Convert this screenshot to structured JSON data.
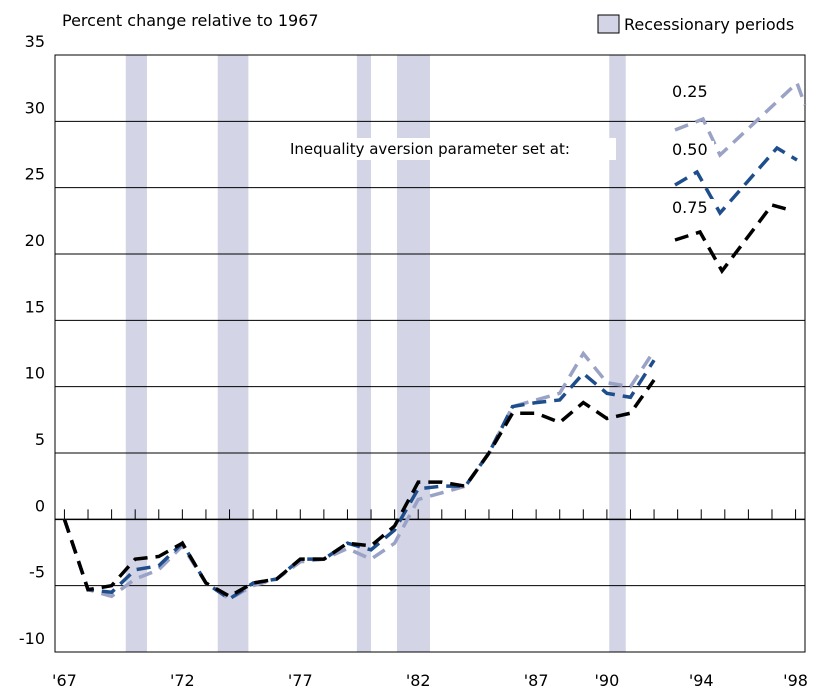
{
  "chart_data": {
    "type": "line",
    "title": "Percent change relative to 1967",
    "legend_recession": "Recessionary periods",
    "recession_color": "#d3d5e6",
    "recessions": [
      [
        1969.6,
        1970.5
      ],
      [
        1973.5,
        1974.8
      ],
      [
        1979.4,
        1980.0
      ],
      [
        1981.1,
        1982.5
      ],
      [
        1990.1,
        1990.8
      ]
    ],
    "annotation": "Inequality aversion parameter set at:",
    "x": [
      1967,
      1968,
      1969,
      1970,
      1971,
      1972,
      1973,
      1974,
      1975,
      1976,
      1977,
      1978,
      1979,
      1980,
      1981,
      1982,
      1983,
      1984,
      1985,
      1986,
      1987,
      1988,
      1989,
      1990,
      1991,
      1992
    ],
    "series": [
      {
        "name": "0.25",
        "color": "#9aa2c6",
        "values": [
          0,
          -5.3,
          -5.8,
          -4.5,
          -3.8,
          -2.0,
          -4.8,
          -6.0,
          -5.0,
          -4.5,
          -3.2,
          -3.0,
          -2.2,
          -3.0,
          -1.8,
          1.5,
          2.0,
          2.5,
          5.0,
          8.5,
          9.0,
          9.5,
          12.5,
          10.3,
          10.0,
          12.7
        ]
      },
      {
        "name": "0.50",
        "color": "#1f4e8c",
        "values": [
          0,
          -5.3,
          -5.5,
          -3.8,
          -3.5,
          -1.8,
          -4.8,
          -6.0,
          -4.8,
          -4.5,
          -3.0,
          -3.0,
          -1.8,
          -2.3,
          -0.8,
          2.3,
          2.5,
          2.5,
          5.0,
          8.5,
          8.8,
          9.0,
          11.0,
          9.5,
          9.2,
          12.0
        ]
      },
      {
        "name": "0.75",
        "color": "#000000",
        "values": [
          0,
          -5.3,
          -5.0,
          -3.0,
          -2.8,
          -1.8,
          -4.8,
          -5.8,
          -4.8,
          -4.5,
          -3.0,
          -3.0,
          -1.8,
          -2.0,
          -0.5,
          2.8,
          2.8,
          2.5,
          5.0,
          8.0,
          8.0,
          7.3,
          8.8,
          7.6,
          8.0,
          10.5
        ]
      }
    ],
    "xlim": [
      1966.6,
      1998.4
    ],
    "ylim": [
      -10,
      35
    ],
    "xticks": [
      {
        "value": 1967,
        "label": "'67"
      },
      {
        "value": 1972,
        "label": "'72"
      },
      {
        "value": 1977,
        "label": "'77"
      },
      {
        "value": 1982,
        "label": "'82"
      },
      {
        "value": 1987,
        "label": "'87"
      },
      {
        "value": 1990,
        "label": "'90"
      },
      {
        "value": 1994,
        "label": "'94"
      },
      {
        "value": 1998,
        "label": "'98"
      }
    ],
    "xminorticks": [
      1967,
      1968,
      1969,
      1970,
      1971,
      1972,
      1973,
      1974,
      1975,
      1976,
      1977,
      1978,
      1979,
      1980,
      1981,
      1982,
      1983,
      1984,
      1985,
      1986,
      1987,
      1988,
      1989,
      1990,
      1991,
      1992,
      1993,
      1994,
      1995,
      1996,
      1997,
      1998
    ],
    "yticks": [
      35,
      30,
      25,
      20,
      15,
      10,
      5,
      0,
      -5,
      -10
    ],
    "grid": true
  }
}
